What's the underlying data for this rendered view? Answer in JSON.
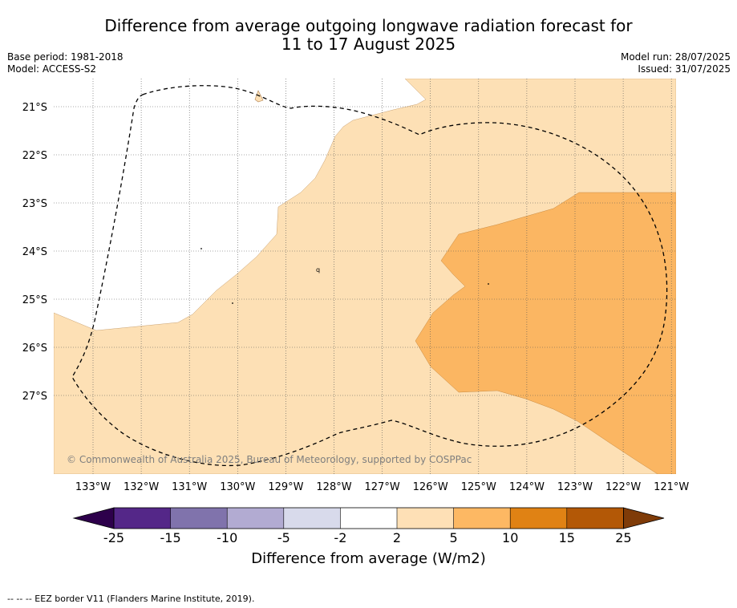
{
  "title_line1": "Difference from average outgoing longwave radiation forecast for",
  "title_line2": "11 to 17 August 2025",
  "base_period": "Base period: 1981-2018",
  "model": "Model: ACCESS-S2",
  "model_run": "Model run: 28/07/2025",
  "issued": "Issued: 31/07/2025",
  "map": {
    "lat_labels": [
      "21°S",
      "22°S",
      "23°S",
      "24°S",
      "25°S",
      "26°S",
      "27°S"
    ],
    "lon_labels": [
      "133°W",
      "132°W",
      "131°W",
      "130°W",
      "129°W",
      "128°W",
      "127°W",
      "126°W",
      "125°W",
      "124°W",
      "123°W",
      "122°W",
      "121°W"
    ],
    "copyright": "© Commonwealth of Australia 2025, Bureau of Meteorology, supported by COSPPac",
    "fill_colors": {
      "low_positive": "#fde0b5",
      "mid_positive": "#fbb662"
    }
  },
  "colorbar": {
    "tick_labels": [
      "-25",
      "-15",
      "-10",
      "-5",
      "-2",
      "2",
      "5",
      "10",
      "15",
      "25"
    ],
    "colors": [
      "#2d004b",
      "#542788",
      "#8073ac",
      "#b2abd2",
      "#d8daeb",
      "#ffffff",
      "#fee0b6",
      "#fdb863",
      "#e08214",
      "#b35806",
      "#7f3b08"
    ],
    "title": "Difference from average (W/m2)"
  },
  "footnote": "--  --  -- EEZ border V11 (Flanders Marine Institute, 2019)."
}
